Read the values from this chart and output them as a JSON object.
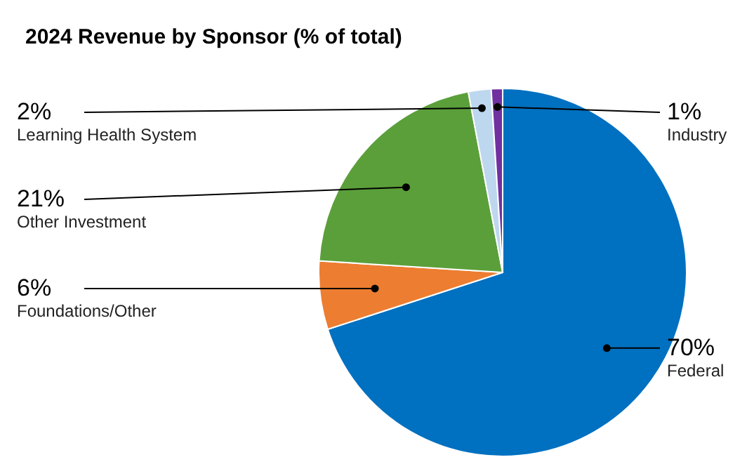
{
  "chart_data": {
    "type": "pie",
    "title": "2024 Revenue by Sponsor (% of total)",
    "categories": [
      "Federal",
      "Foundations/Other",
      "Other Investment",
      "Learning Health System",
      "Industry"
    ],
    "values": [
      70,
      6,
      21,
      2,
      1
    ],
    "value_labels": [
      "70%",
      "6%",
      "21%",
      "2%",
      "1%"
    ],
    "colors": [
      "#0070c0",
      "#ed7d31",
      "#5b9f3a",
      "#bdd7ee",
      "#7030a0"
    ],
    "legend": false
  }
}
